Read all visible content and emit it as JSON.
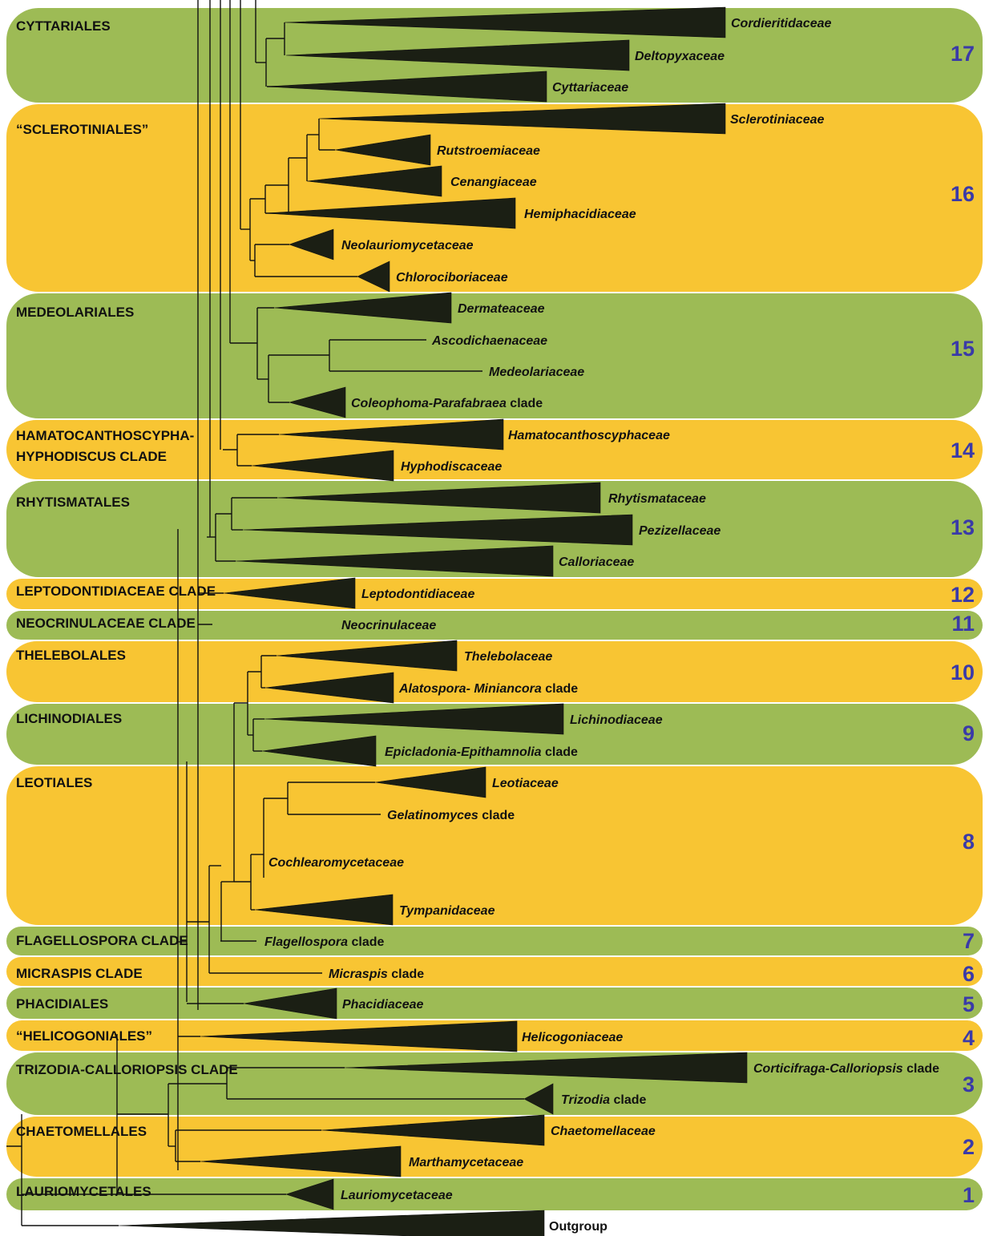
{
  "colors": {
    "green_band": "#9dbb55",
    "yellow_band": "#f8c533",
    "number_text": "#3a3aa8",
    "wedge": "#1b1f14",
    "branch": "#111111"
  },
  "bands": [
    {
      "num": "17",
      "title": "CYTTARIALES",
      "color": "green"
    },
    {
      "num": "16",
      "title": "“SCLEROTINIALES”",
      "color": "yellow"
    },
    {
      "num": "15",
      "title": "MEDEOLARIALES",
      "color": "green"
    },
    {
      "num": "14",
      "title": "HAMATOCANTHOSCYPHA-",
      "title2": "HYPHODISCUS CLADE",
      "color": "yellow"
    },
    {
      "num": "13",
      "title": "RHYTISMATALES",
      "color": "green"
    },
    {
      "num": "12",
      "title": "LEPTODONTIDIACEAE CLADE",
      "color": "yellow"
    },
    {
      "num": "11",
      "title": "NEOCRINULACEAE CLADE",
      "color": "green"
    },
    {
      "num": "10",
      "title": "THELEBOLALES",
      "color": "yellow"
    },
    {
      "num": "9",
      "title": "LICHINODIALES",
      "color": "green"
    },
    {
      "num": "8",
      "title": "LEOTIALES",
      "color": "yellow"
    },
    {
      "num": "7",
      "title": "FLAGELLOSPORA CLADE",
      "color": "green"
    },
    {
      "num": "6",
      "title": "MICRASPIS CLADE",
      "color": "yellow"
    },
    {
      "num": "5",
      "title": "PHACIDIALES",
      "color": "green"
    },
    {
      "num": "4",
      "title": "“HELICOGONIALES”",
      "color": "yellow"
    },
    {
      "num": "3",
      "title": "TRIZODIA-CALLORIOPSIS CLADE",
      "color": "green"
    },
    {
      "num": "2",
      "title": "CHAETOMELLALES",
      "color": "yellow"
    },
    {
      "num": "1",
      "title": "LAURIOMYCETALES",
      "color": "green"
    }
  ],
  "taxa": [
    {
      "name": "Cordieritidaceae",
      "suffix": ""
    },
    {
      "name": "Deltopyxaceae",
      "suffix": ""
    },
    {
      "name": "Cyttariaceae",
      "suffix": ""
    },
    {
      "name": "Sclerotiniaceae",
      "suffix": ""
    },
    {
      "name": "Rutstroemiaceae",
      "suffix": ""
    },
    {
      "name": "Cenangiaceae",
      "suffix": ""
    },
    {
      "name": "Hemiphacidiaceae",
      "suffix": ""
    },
    {
      "name": "Neolauriomycetaceae",
      "suffix": ""
    },
    {
      "name": "Chlorociboriaceae",
      "suffix": ""
    },
    {
      "name": "Dermateaceae",
      "suffix": ""
    },
    {
      "name": "Ascodichaenaceae",
      "suffix": ""
    },
    {
      "name": "Medeolariaceae",
      "suffix": ""
    },
    {
      "name": "Coleophoma-Parafabraea",
      "suffix": " clade"
    },
    {
      "name": "Hamatocanthoscyphaceae",
      "suffix": ""
    },
    {
      "name": "Hyphodiscaceae",
      "suffix": ""
    },
    {
      "name": "Rhytismataceae",
      "suffix": ""
    },
    {
      "name": "Pezizellaceae",
      "suffix": ""
    },
    {
      "name": "Calloriaceae",
      "suffix": ""
    },
    {
      "name": "Leptodontidiaceae",
      "suffix": ""
    },
    {
      "name": "Neocrinulaceae",
      "suffix": ""
    },
    {
      "name": "Thelebolaceae",
      "suffix": ""
    },
    {
      "name": "Alatospora- Miniancora",
      "suffix": " clade"
    },
    {
      "name": "Lichinodiaceae",
      "suffix": ""
    },
    {
      "name": "Epicladonia-Epithamnolia",
      "suffix": " clade"
    },
    {
      "name": "Leotiaceae",
      "suffix": ""
    },
    {
      "name": "Gelatinomyces",
      "suffix": " clade"
    },
    {
      "name": "Cochlearomycetaceae",
      "suffix": ""
    },
    {
      "name": "Tympanidaceae",
      "suffix": ""
    },
    {
      "name": "Flagellospora",
      "suffix": " clade"
    },
    {
      "name": "Micraspis",
      "suffix": " clade"
    },
    {
      "name": "Phacidiaceae",
      "suffix": ""
    },
    {
      "name": "Helicogoniaceae",
      "suffix": ""
    },
    {
      "name": "Corticifraga-Calloriopsis",
      "suffix": " clade"
    },
    {
      "name": "Trizodia",
      "suffix": " clade"
    },
    {
      "name": "Chaetomellaceae",
      "suffix": ""
    },
    {
      "name": "Marthamycetaceae",
      "suffix": ""
    },
    {
      "name": "Lauriomycetaceae",
      "suffix": ""
    },
    {
      "name": "Outgroup",
      "suffix": ""
    }
  ]
}
